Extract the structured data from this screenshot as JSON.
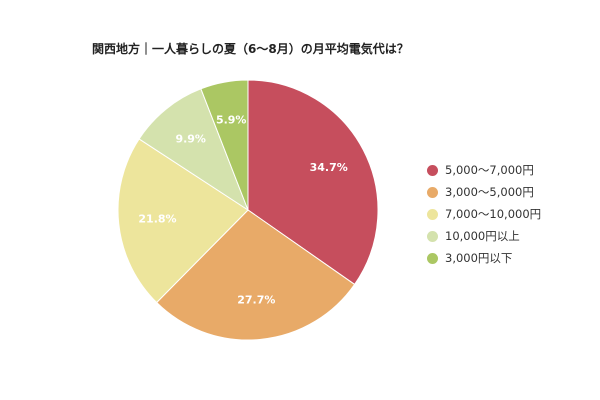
{
  "chart_data": {
    "type": "pie",
    "title": "関西地方｜一人暮らしの夏（6〜8月）の月平均電気代は？",
    "slices": [
      {
        "label": "5,000〜7,000円",
        "value": 34.7,
        "display": "34.7%",
        "color": "#c64e5d"
      },
      {
        "label": "3,000〜5,000円",
        "value": 27.7,
        "display": "27.7%",
        "color": "#e8aa68"
      },
      {
        "label": "7,000〜10,000円",
        "value": 21.8,
        "display": "21.8%",
        "color": "#ede59c"
      },
      {
        "label": "10,000円以上",
        "value": 9.9,
        "display": "9.9%",
        "color": "#d4e2ad"
      },
      {
        "label": "3,000円以下",
        "value": 5.9,
        "display": "5.9%",
        "color": "#abc763"
      }
    ],
    "legend_position": "right"
  }
}
